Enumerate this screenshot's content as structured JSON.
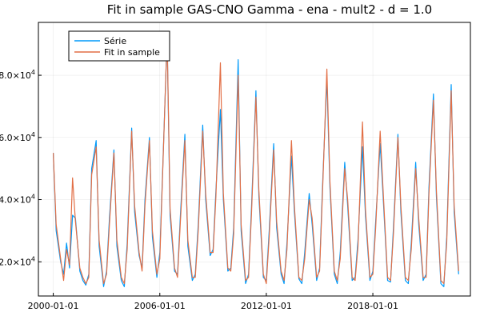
{
  "chart_data": {
    "type": "line",
    "title": "Fit in sample GAS-CNO Gamma - ena - mult2 - d = 1.0",
    "xlabel": "",
    "ylabel": "",
    "x_range": [
      "1999-03-01",
      "2023-07-01"
    ],
    "y_range": [
      9000,
      97000
    ],
    "grid": true,
    "legend_position": "top-left",
    "x_ticks": [
      {
        "date": "2000-01-01",
        "label": "2000-01-01"
      },
      {
        "date": "2006-01-01",
        "label": "2006-01-01"
      },
      {
        "date": "2012-01-01",
        "label": "2012-01-01"
      },
      {
        "date": "2018-01-01",
        "label": "2018-01-01"
      }
    ],
    "y_ticks": [
      {
        "value": 20000,
        "mantissa": "2.0",
        "exp": "4"
      },
      {
        "value": 40000,
        "mantissa": "4.0",
        "exp": "4"
      },
      {
        "value": 60000,
        "mantissa": "6.0",
        "exp": "4"
      },
      {
        "value": 80000,
        "mantissa": "8.0",
        "exp": "4"
      }
    ],
    "series": [
      {
        "name": "Série",
        "color": "#009AFA",
        "x": [
          "2000-01-01",
          "2000-03-01",
          "2000-06-01",
          "2000-08-01",
          "2000-10-01",
          "2000-12-01",
          "2001-02-01",
          "2001-04-01",
          "2001-07-01",
          "2001-09-01",
          "2001-11-01",
          "2002-01-01",
          "2002-03-01",
          "2002-06-01",
          "2002-08-01",
          "2002-11-01",
          "2003-01-01",
          "2003-03-01",
          "2003-06-01",
          "2003-08-01",
          "2003-11-01",
          "2004-01-01",
          "2004-03-01",
          "2004-06-01",
          "2004-08-01",
          "2004-11-01",
          "2005-01-01",
          "2005-03-01",
          "2005-06-01",
          "2005-08-01",
          "2005-11-01",
          "2006-01-01",
          "2006-03-01",
          "2006-06-01",
          "2006-08-01",
          "2006-11-01",
          "2007-01-01",
          "2007-03-01",
          "2007-06-01",
          "2007-08-01",
          "2007-11-01",
          "2008-01-01",
          "2008-03-01",
          "2008-06-01",
          "2008-08-01",
          "2008-11-01",
          "2009-01-01",
          "2009-03-01",
          "2009-06-01",
          "2009-08-01",
          "2009-11-01",
          "2010-01-01",
          "2010-03-01",
          "2010-06-01",
          "2010-08-01",
          "2010-11-01",
          "2011-01-01",
          "2011-03-01",
          "2011-06-01",
          "2011-08-01",
          "2011-11-01",
          "2012-01-01",
          "2012-03-01",
          "2012-06-01",
          "2012-08-01",
          "2012-11-01",
          "2013-01-01",
          "2013-03-01",
          "2013-06-01",
          "2013-08-01",
          "2013-11-01",
          "2014-01-01",
          "2014-03-01",
          "2014-06-01",
          "2014-08-01",
          "2014-11-01",
          "2015-01-01",
          "2015-03-01",
          "2015-06-01",
          "2015-08-01",
          "2015-11-01",
          "2016-01-01",
          "2016-03-01",
          "2016-06-01",
          "2016-08-01",
          "2016-11-01",
          "2017-01-01",
          "2017-03-01",
          "2017-06-01",
          "2017-08-01",
          "2017-11-01",
          "2018-01-01",
          "2018-03-01",
          "2018-06-01",
          "2018-08-01",
          "2018-11-01",
          "2019-01-01",
          "2019-03-01",
          "2019-06-01",
          "2019-08-01",
          "2019-11-01",
          "2020-01-01",
          "2020-03-01",
          "2020-06-01",
          "2020-08-01",
          "2020-11-01",
          "2021-01-01",
          "2021-03-01",
          "2021-06-01",
          "2021-08-01",
          "2021-11-01",
          "2022-01-01",
          "2022-03-01",
          "2022-06-01",
          "2022-08-01",
          "2022-11-01"
        ],
        "y": [
          55000,
          30000,
          20000,
          16000,
          26000,
          18000,
          35000,
          34000,
          17000,
          14000,
          12500,
          16000,
          50000,
          59000,
          25000,
          12000,
          17000,
          34000,
          56000,
          25000,
          14000,
          12000,
          26000,
          63000,
          36000,
          22000,
          18000,
          40000,
          60000,
          28000,
          15000,
          23000,
          50000,
          92000,
          35000,
          17000,
          16000,
          35000,
          61000,
          25000,
          14000,
          16000,
          32000,
          64000,
          40000,
          22000,
          24000,
          43000,
          69000,
          40000,
          17000,
          18000,
          31000,
          85000,
          30000,
          13000,
          16000,
          37000,
          75000,
          41000,
          15000,
          14000,
          30000,
          58000,
          31000,
          16000,
          13000,
          26000,
          54000,
          36000,
          14500,
          13000,
          23000,
          42000,
          32000,
          14000,
          18000,
          44000,
          79000,
          44000,
          16000,
          13000,
          23000,
          52000,
          38000,
          14000,
          15000,
          27000,
          57000,
          35000,
          14000,
          17000,
          33000,
          58000,
          41000,
          14000,
          13500,
          31000,
          61000,
          36000,
          14000,
          13000,
          26000,
          52000,
          32000,
          14000,
          16000,
          44000,
          74000,
          41000,
          13000,
          12000,
          28000,
          77000,
          36000,
          16000
        ]
      },
      {
        "name": "Fit in sample",
        "color": "#E26F46",
        "x": [
          "2000-01-01",
          "2000-03-01",
          "2000-06-01",
          "2000-08-01",
          "2000-10-01",
          "2000-12-01",
          "2001-02-01",
          "2001-04-01",
          "2001-07-01",
          "2001-09-01",
          "2001-11-01",
          "2002-01-01",
          "2002-03-01",
          "2002-06-01",
          "2002-08-01",
          "2002-11-01",
          "2003-01-01",
          "2003-03-01",
          "2003-06-01",
          "2003-08-01",
          "2003-11-01",
          "2004-01-01",
          "2004-03-01",
          "2004-06-01",
          "2004-08-01",
          "2004-11-01",
          "2005-01-01",
          "2005-03-01",
          "2005-06-01",
          "2005-08-01",
          "2005-11-01",
          "2006-01-01",
          "2006-03-01",
          "2006-06-01",
          "2006-08-01",
          "2006-11-01",
          "2007-01-01",
          "2007-03-01",
          "2007-06-01",
          "2007-08-01",
          "2007-11-01",
          "2008-01-01",
          "2008-03-01",
          "2008-06-01",
          "2008-08-01",
          "2008-11-01",
          "2009-01-01",
          "2009-03-01",
          "2009-06-01",
          "2009-08-01",
          "2009-11-01",
          "2010-01-01",
          "2010-03-01",
          "2010-06-01",
          "2010-08-01",
          "2010-11-01",
          "2011-01-01",
          "2011-03-01",
          "2011-06-01",
          "2011-08-01",
          "2011-11-01",
          "2012-01-01",
          "2012-03-01",
          "2012-06-01",
          "2012-08-01",
          "2012-11-01",
          "2013-01-01",
          "2013-03-01",
          "2013-06-01",
          "2013-08-01",
          "2013-11-01",
          "2014-01-01",
          "2014-03-01",
          "2014-06-01",
          "2014-08-01",
          "2014-11-01",
          "2015-01-01",
          "2015-03-01",
          "2015-06-01",
          "2015-08-01",
          "2015-11-01",
          "2016-01-01",
          "2016-03-01",
          "2016-06-01",
          "2016-08-01",
          "2016-11-01",
          "2017-01-01",
          "2017-03-01",
          "2017-06-01",
          "2017-08-01",
          "2017-11-01",
          "2018-01-01",
          "2018-03-01",
          "2018-06-01",
          "2018-08-01",
          "2018-11-01",
          "2019-01-01",
          "2019-03-01",
          "2019-06-01",
          "2019-08-01",
          "2019-11-01",
          "2020-01-01",
          "2020-03-01",
          "2020-06-01",
          "2020-08-01",
          "2020-11-01",
          "2021-01-01",
          "2021-03-01",
          "2021-06-01",
          "2021-08-01",
          "2021-11-01",
          "2022-01-01",
          "2022-03-01",
          "2022-06-01",
          "2022-08-01",
          "2022-11-01"
        ],
        "y": [
          55000,
          32000,
          21000,
          14000,
          24000,
          19000,
          47000,
          33000,
          18000,
          15000,
          13000,
          15000,
          48000,
          57000,
          27000,
          13000,
          16000,
          32000,
          55000,
          27000,
          15000,
          13000,
          24000,
          62000,
          38000,
          23000,
          17000,
          38000,
          59000,
          30000,
          16000,
          21000,
          49000,
          93000,
          37000,
          18000,
          15000,
          33000,
          59000,
          27000,
          15000,
          15000,
          30000,
          62000,
          42000,
          23000,
          23000,
          41000,
          84000,
          42000,
          18000,
          17000,
          29000,
          80000,
          32000,
          14000,
          15000,
          35000,
          73000,
          43000,
          16000,
          13000,
          28000,
          56000,
          33000,
          17000,
          14000,
          24000,
          59000,
          38000,
          15000,
          14000,
          21000,
          40000,
          34000,
          15000,
          17000,
          42000,
          82000,
          46000,
          17000,
          14000,
          21000,
          50000,
          40000,
          15000,
          14000,
          25000,
          65000,
          37000,
          15000,
          16000,
          31000,
          62000,
          43000,
          15000,
          14000,
          29000,
          60000,
          38000,
          15000,
          14000,
          24000,
          50000,
          34000,
          15000,
          15000,
          42000,
          72000,
          43000,
          14000,
          13000,
          26000,
          75000,
          38000,
          17000
        ]
      }
    ]
  }
}
